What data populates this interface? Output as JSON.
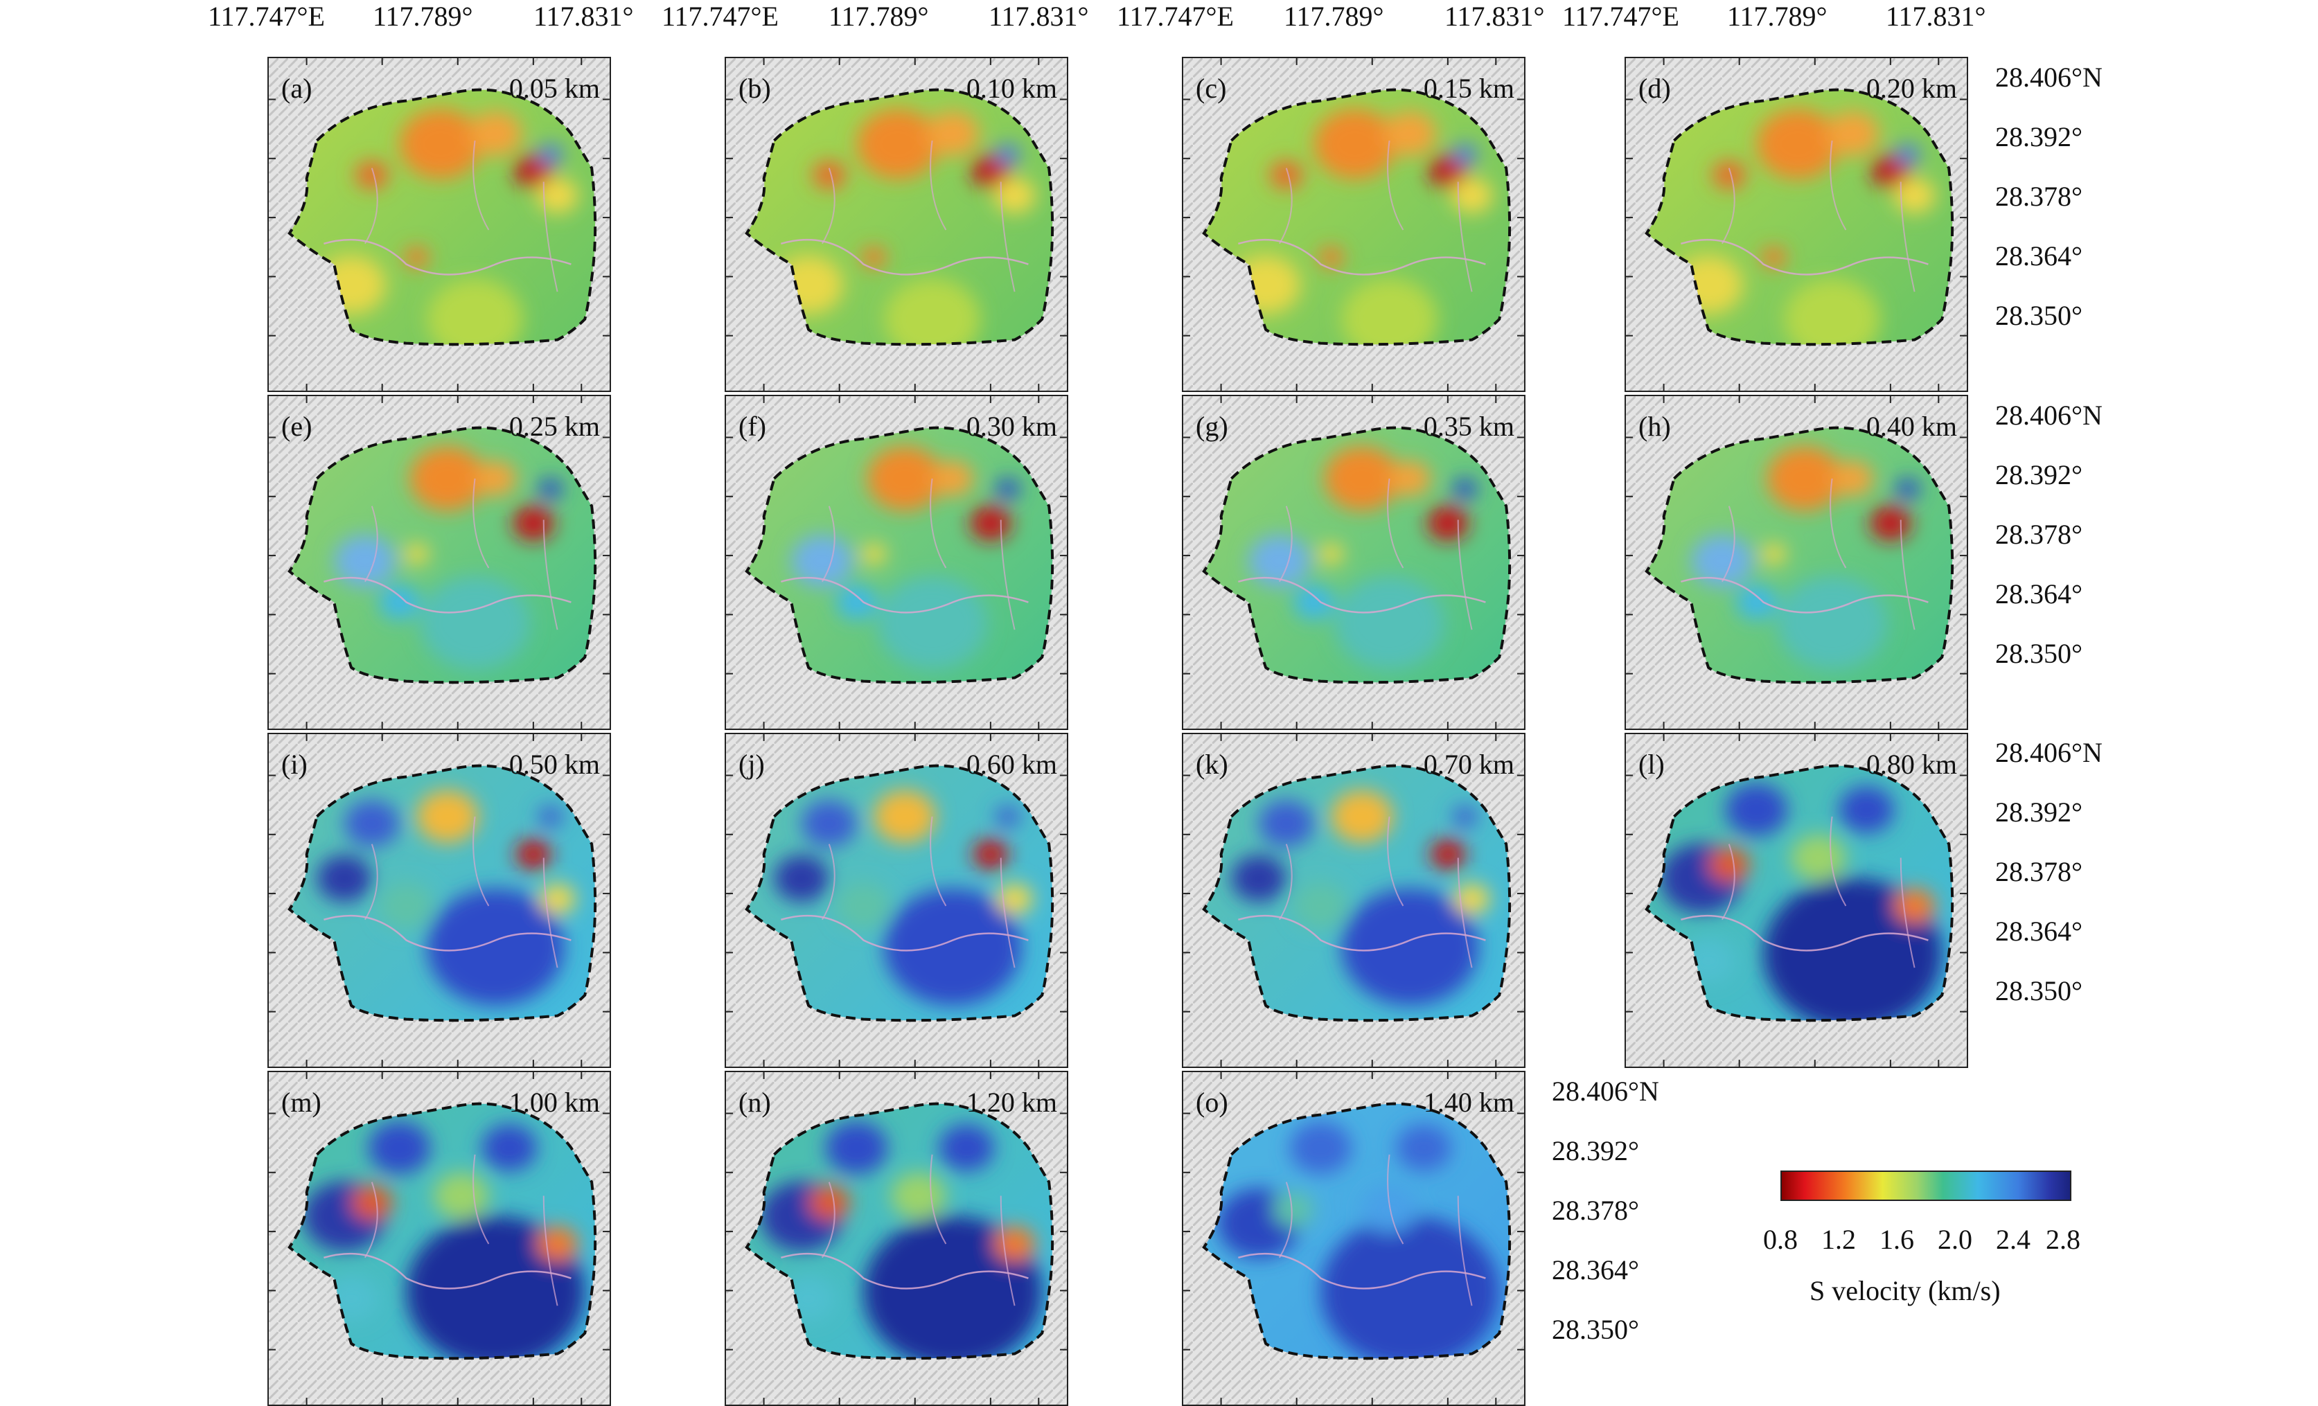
{
  "lon_labels": [
    {
      "text": "117.747°E"
    },
    {
      "text": "117.789°"
    },
    {
      "text": "117.831°"
    },
    {
      "text": "117.747°E"
    },
    {
      "text": "117.789°"
    },
    {
      "text": "117.831°"
    },
    {
      "text": "117.747°E"
    },
    {
      "text": "117.789°"
    },
    {
      "text": "117.831°"
    },
    {
      "text": "117.747°E"
    },
    {
      "text": "117.789°"
    },
    {
      "text": "117.831°"
    }
  ],
  "lat_labels": [
    "28.406°N",
    "28.392°",
    "28.378°",
    "28.364°",
    "28.350°"
  ],
  "panels": [
    {
      "letter": "(a)",
      "depth": "0.05 km",
      "scheme": "shallow"
    },
    {
      "letter": "(b)",
      "depth": "0.10 km",
      "scheme": "shallow"
    },
    {
      "letter": "(c)",
      "depth": "0.15 km",
      "scheme": "shallow"
    },
    {
      "letter": "(d)",
      "depth": "0.20 km",
      "scheme": "shallow"
    },
    {
      "letter": "(e)",
      "depth": "0.25 km",
      "scheme": "mid"
    },
    {
      "letter": "(f)",
      "depth": "0.30 km",
      "scheme": "mid"
    },
    {
      "letter": "(g)",
      "depth": "0.35 km",
      "scheme": "mid"
    },
    {
      "letter": "(h)",
      "depth": "0.40 km",
      "scheme": "mid"
    },
    {
      "letter": "(i)",
      "depth": "0.50 km",
      "scheme": "deep"
    },
    {
      "letter": "(j)",
      "depth": "0.60 km",
      "scheme": "deep"
    },
    {
      "letter": "(k)",
      "depth": "0.70 km",
      "scheme": "deep"
    },
    {
      "letter": "(l)",
      "depth": "0.80 km",
      "scheme": "deeper"
    },
    {
      "letter": "(m)",
      "depth": "1.00 km",
      "scheme": "deeper"
    },
    {
      "letter": "(n)",
      "depth": "1.20 km",
      "scheme": "deeper"
    },
    {
      "letter": "(o)",
      "depth": "1.40 km",
      "scheme": "deepest"
    }
  ],
  "colorbar": {
    "ticks": [
      "0.8",
      "1.2",
      "1.6",
      "2.0",
      "2.4",
      "2.8"
    ],
    "title": "S velocity (km/s)",
    "colors": [
      "#8b0000",
      "#e0141b",
      "#f27b20",
      "#e8e83a",
      "#9cd36a",
      "#3fbf8f",
      "#3fb8e6",
      "#3d7ee0",
      "#2a36a8",
      "#1a237e"
    ]
  }
}
